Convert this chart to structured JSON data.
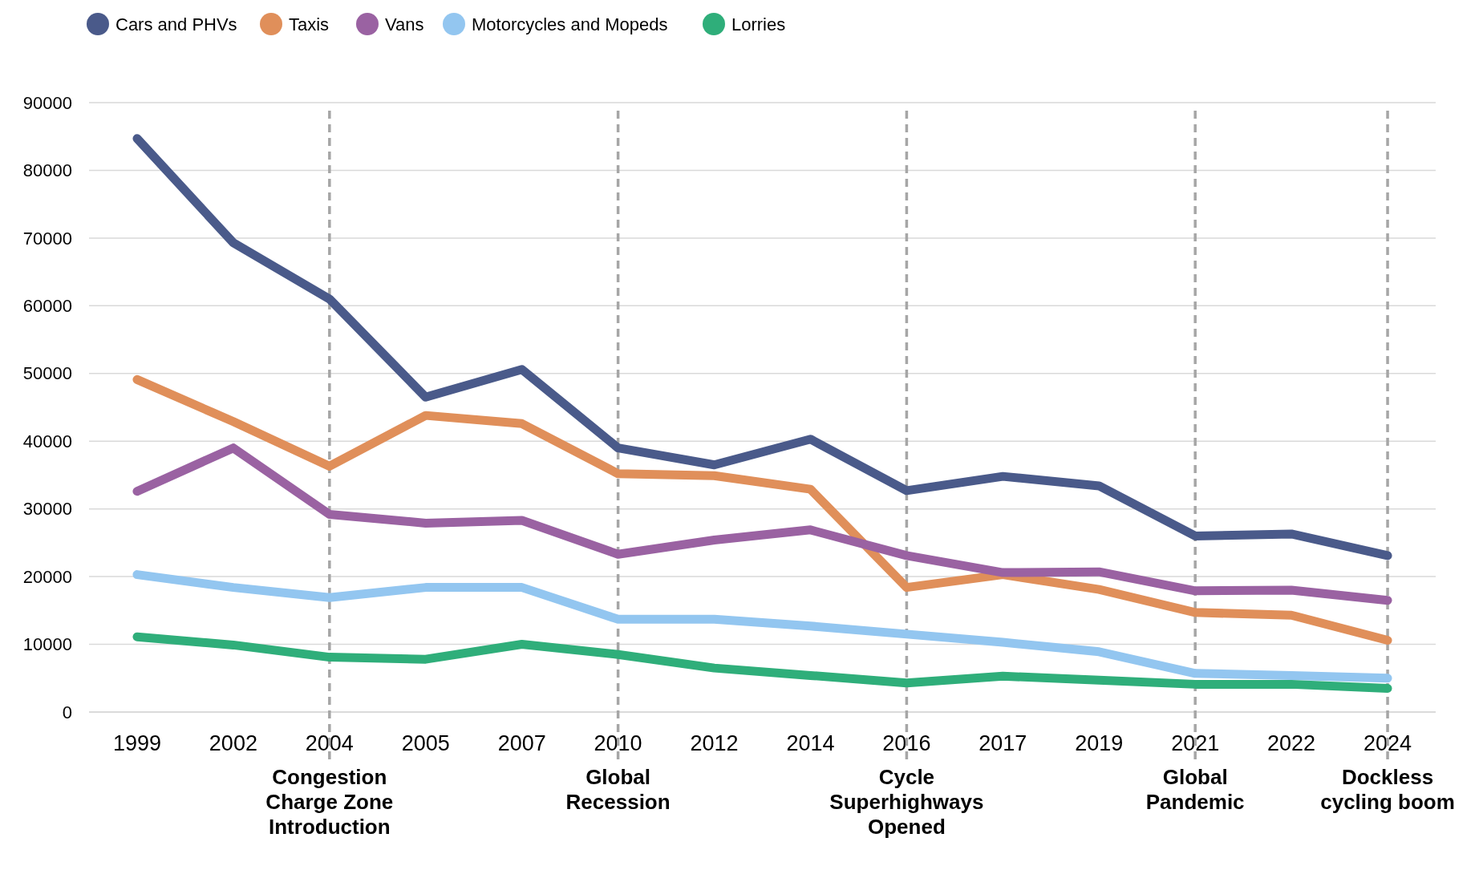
{
  "chart_data": {
    "type": "line",
    "categories": [
      "1999",
      "2002",
      "2004",
      "2005",
      "2007",
      "2010",
      "2012",
      "2014",
      "2016",
      "2017",
      "2019",
      "2021",
      "2022",
      "2024"
    ],
    "series": [
      {
        "name": "Cars and PHVs",
        "color": "#4a5a8a",
        "values": [
          84700,
          69300,
          61000,
          46500,
          50600,
          39000,
          36500,
          40300,
          32700,
          34800,
          33400,
          26000,
          26300,
          23100
        ]
      },
      {
        "name": "Taxis",
        "color": "#e08f5a",
        "values": [
          49100,
          42900,
          36300,
          43800,
          42600,
          35200,
          34900,
          32900,
          18400,
          20300,
          18100,
          14700,
          14300,
          10600
        ]
      },
      {
        "name": "Vans",
        "color": "#9a62a2",
        "values": [
          32600,
          39000,
          29200,
          27900,
          28300,
          23300,
          25400,
          26900,
          23100,
          20600,
          20700,
          17900,
          18000,
          16500
        ]
      },
      {
        "name": "Motorcycles and Mopeds",
        "color": "#93c6f0",
        "values": [
          20300,
          18400,
          16900,
          18400,
          18400,
          13700,
          13700,
          12700,
          11500,
          10300,
          8900,
          5700,
          5400,
          5000
        ]
      },
      {
        "name": "Lorries",
        "color": "#2fae7a",
        "values": [
          11100,
          9900,
          8100,
          7800,
          10000,
          8500,
          6500,
          5400,
          4300,
          5300,
          4700,
          4100,
          4100,
          3500
        ]
      }
    ],
    "ylim": [
      0,
      90000
    ],
    "yticks": [
      0,
      10000,
      20000,
      30000,
      40000,
      50000,
      60000,
      70000,
      80000,
      90000
    ],
    "grid": "y",
    "legend": "top left",
    "marker": "none",
    "line_style": "solid",
    "ref_lines": [
      {
        "axis": "x",
        "value": "2004",
        "label": "Congestion Charge Zone Introduction",
        "color": "#a6a6a6",
        "line_style": "dashed"
      },
      {
        "axis": "x",
        "value": "2010",
        "label": "Global Recession",
        "color": "#a6a6a6",
        "line_style": "dashed"
      },
      {
        "axis": "x",
        "value": "2016",
        "label": "Cycle Superhighways Opened",
        "color": "#a6a6a6",
        "line_style": "dashed"
      },
      {
        "axis": "x",
        "value": "2021",
        "label": "Global Pandemic",
        "color": "#a6a6a6",
        "line_style": "dashed"
      },
      {
        "axis": "x",
        "value": "2024",
        "label": "Dockless cycling boom",
        "color": "#a6a6a6",
        "line_style": "dashed"
      }
    ]
  }
}
